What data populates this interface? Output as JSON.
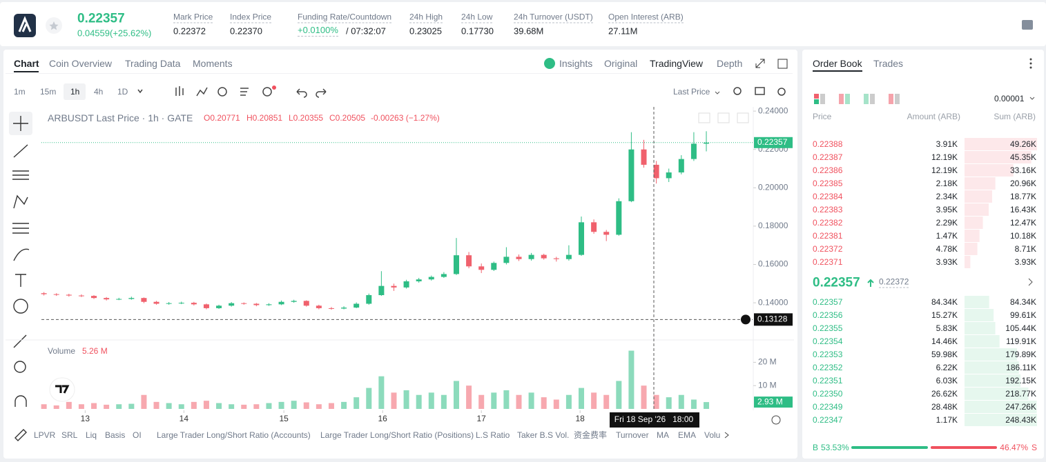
{
  "header": {
    "price": "0.22357",
    "change": "0.04559(+25.62%)",
    "stats": [
      {
        "label": "Mark Price",
        "value": "0.22372"
      },
      {
        "label": "Index Price",
        "value": "0.22370"
      },
      {
        "label": "Funding Rate/Countdown",
        "value": "+0.0100%",
        "extra": "/ 07:32:07"
      },
      {
        "label": "24h High",
        "value": "0.23025"
      },
      {
        "label": "24h Low",
        "value": "0.17730"
      },
      {
        "label": "24h Turnover (USDT)",
        "value": "39.68M"
      },
      {
        "label": "Open Interest (ARB)",
        "value": "27.11M"
      }
    ]
  },
  "chart_tabs": [
    "Chart",
    "Coin Overview",
    "Trading Data",
    "Moments"
  ],
  "view_tabs": [
    "Insights",
    "Original",
    "TradingView",
    "Depth"
  ],
  "intervals": [
    "1m",
    "15m",
    "1h",
    "4h",
    "1D"
  ],
  "price_source": "Last Price",
  "legend": {
    "title": "ARBUSDT Last Price · 1h · GATE",
    "o": "O0.20771",
    "h": "H0.20851",
    "l": "L0.20355",
    "c": "C0.20505",
    "chg": "-0.00263 (−1.27%)"
  },
  "chart_data": {
    "type": "candlestick",
    "open": [
      0.145,
      0.1445,
      0.1442,
      0.1438,
      0.1436,
      0.1425,
      0.1418,
      0.142,
      0.1425,
      0.1405,
      0.1395,
      0.1398,
      0.14,
      0.1392,
      0.1372,
      0.1385,
      0.1398,
      0.1395,
      0.1388,
      0.1392,
      0.1405,
      0.141,
      0.1385,
      0.1372,
      0.137,
      0.1375,
      0.1395,
      0.144,
      0.1488,
      0.148,
      0.1512,
      0.1522,
      0.1535,
      0.155,
      0.1648,
      0.159,
      0.1572,
      0.1608,
      0.164,
      0.1628,
      0.165,
      0.1632,
      0.1628,
      0.165,
      0.182,
      0.177,
      0.1755,
      0.193,
      0.22,
      0.212,
      0.205,
      0.208,
      0.215,
      0.223
    ],
    "high": [
      0.1456,
      0.145,
      0.1447,
      0.1444,
      0.144,
      0.143,
      0.1426,
      0.1432,
      0.1428,
      0.141,
      0.1404,
      0.1406,
      0.1405,
      0.1396,
      0.139,
      0.1404,
      0.1402,
      0.1399,
      0.1398,
      0.1412,
      0.1416,
      0.1413,
      0.139,
      0.1378,
      0.1382,
      0.1402,
      0.1448,
      0.1565,
      0.15,
      0.152,
      0.153,
      0.1542,
      0.156,
      0.1738,
      0.1665,
      0.1605,
      0.1615,
      0.169,
      0.1652,
      0.166,
      0.1656,
      0.164,
      0.17,
      0.185,
      0.1835,
      0.178,
      0.1945,
      0.229,
      0.225,
      0.214,
      0.21,
      0.217,
      0.229,
      0.2295
    ],
    "low": [
      0.1438,
      0.1436,
      0.1432,
      0.143,
      0.142,
      0.1412,
      0.1414,
      0.1416,
      0.1398,
      0.139,
      0.139,
      0.1393,
      0.1386,
      0.1366,
      0.1368,
      0.138,
      0.139,
      0.1382,
      0.1384,
      0.1388,
      0.14,
      0.138,
      0.1366,
      0.1364,
      0.1366,
      0.1372,
      0.139,
      0.1436,
      0.1462,
      0.1474,
      0.1505,
      0.1516,
      0.153,
      0.1545,
      0.158,
      0.1555,
      0.1566,
      0.16,
      0.1618,
      0.162,
      0.1625,
      0.1615,
      0.162,
      0.1645,
      0.176,
      0.1722,
      0.175,
      0.1925,
      0.2105,
      0.2022,
      0.203,
      0.207,
      0.214,
      0.219
    ],
    "close": [
      0.1445,
      0.1442,
      0.1438,
      0.1436,
      0.1425,
      0.1418,
      0.142,
      0.1425,
      0.1405,
      0.1395,
      0.1398,
      0.14,
      0.1392,
      0.1372,
      0.1385,
      0.1398,
      0.1395,
      0.1388,
      0.1392,
      0.1405,
      0.141,
      0.1385,
      0.1372,
      0.137,
      0.1375,
      0.1395,
      0.144,
      0.1488,
      0.148,
      0.1512,
      0.1522,
      0.1535,
      0.155,
      0.1648,
      0.159,
      0.1572,
      0.1608,
      0.164,
      0.1628,
      0.165,
      0.1632,
      0.1628,
      0.165,
      0.182,
      0.177,
      0.1755,
      0.193,
      0.22,
      0.212,
      0.205,
      0.208,
      0.215,
      0.223,
      0.22357
    ],
    "volumes": [
      2,
      1.5,
      3,
      2,
      2.5,
      1.8,
      2,
      2.2,
      6,
      3,
      2.5,
      2,
      3,
      3.5,
      2.5,
      2,
      1.8,
      2,
      2.5,
      3,
      3.5,
      2.8,
      2,
      2.5,
      3,
      5,
      9,
      14,
      7,
      8,
      6,
      7,
      6,
      12,
      10,
      6,
      7,
      8,
      6,
      7,
      5,
      4,
      6,
      9,
      7,
      6,
      12,
      25,
      10,
      6,
      5,
      6,
      4,
      2.93
    ],
    "ylim": [
      0.1217,
      0.2422
    ],
    "yticks": [
      {
        "value": 0.14,
        "label": "0.14000"
      },
      {
        "value": 0.16,
        "label": "0.16000"
      },
      {
        "value": 0.18,
        "label": "0.18000"
      },
      {
        "value": 0.2,
        "label": "0.20000"
      },
      {
        "value": 0.22,
        "label": "0.22000"
      },
      {
        "value": 0.24,
        "label": "0.24000"
      }
    ],
    "vol_ylim": [
      0,
      29
    ],
    "vol_yticks": [
      {
        "value": 10,
        "label": "10 M"
      },
      {
        "value": 20,
        "label": "20 M"
      }
    ],
    "xlim": [
      -0.2,
      56.7
    ],
    "xticks": [
      {
        "value": 3.3,
        "label": "13"
      },
      {
        "value": 11.2,
        "label": "14"
      },
      {
        "value": 19.2,
        "label": "15"
      },
      {
        "value": 27.1,
        "label": "16"
      },
      {
        "value": 35.0,
        "label": "17"
      },
      {
        "value": 42.9,
        "label": "18"
      }
    ],
    "last_price": {
      "value": 0.22357,
      "label": "0.22357"
    },
    "crosshair": {
      "value": 0.13128,
      "label": "0.13128",
      "x": 48.8
    },
    "crosshair_time": "Fri 18 Sep '26   18:00",
    "volume_title": "Volume",
    "volume_value": "5.26 M",
    "last_volume_label": "2.93 M",
    "up_color": "#2ebd85",
    "down_color": "#f0616d",
    "grid": false
  },
  "indicators": [
    "LPVR",
    "SRL",
    "Liq",
    "Basis",
    "OI",
    "Large Trader Long/Short Ratio (Accounts)",
    "Large Trader Long/Short Ratio (Positions)",
    "L.S Ratio",
    "Taker B.S Vol.",
    "资金费率",
    "Turnover",
    "MA",
    "EMA",
    "Volu"
  ],
  "order_book": {
    "tabs": [
      "Order Book",
      "Trades"
    ],
    "tick": "0.00001",
    "headers": [
      "Price",
      "Amount (ARB)",
      "Sum (ARB)"
    ],
    "asks": [
      [
        "0.22388",
        "3.91K",
        "49.26K"
      ],
      [
        "0.22387",
        "12.19K",
        "45.35K"
      ],
      [
        "0.22386",
        "12.19K",
        "33.16K"
      ],
      [
        "0.22385",
        "2.18K",
        "20.96K"
      ],
      [
        "0.22384",
        "2.34K",
        "18.77K"
      ],
      [
        "0.22383",
        "3.95K",
        "16.43K"
      ],
      [
        "0.22382",
        "2.29K",
        "12.47K"
      ],
      [
        "0.22381",
        "1.47K",
        "10.18K"
      ],
      [
        "0.22372",
        "4.78K",
        "8.71K"
      ],
      [
        "0.22371",
        "3.93K",
        "3.93K"
      ]
    ],
    "last": "0.22357",
    "mark": "0.22372",
    "bids": [
      [
        "0.22357",
        "84.34K",
        "84.34K"
      ],
      [
        "0.22356",
        "15.27K",
        "99.61K"
      ],
      [
        "0.22355",
        "5.83K",
        "105.44K"
      ],
      [
        "0.22354",
        "14.46K",
        "119.91K"
      ],
      [
        "0.22353",
        "59.98K",
        "179.89K"
      ],
      [
        "0.22352",
        "6.22K",
        "186.11K"
      ],
      [
        "0.22351",
        "6.03K",
        "192.15K"
      ],
      [
        "0.22350",
        "26.62K",
        "218.77K"
      ],
      [
        "0.22349",
        "28.48K",
        "247.26K"
      ],
      [
        "0.22347",
        "1.17K",
        "248.43K"
      ]
    ],
    "buy_label": "B",
    "sell_label": "S",
    "buy": {
      "value": 53.53,
      "label": "53.53%"
    },
    "sell": {
      "value": 46.47,
      "label": "46.47%"
    }
  }
}
